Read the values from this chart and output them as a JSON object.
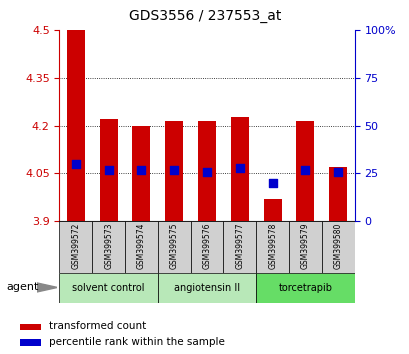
{
  "title": "GDS3556 / 237553_at",
  "samples": [
    "GSM399572",
    "GSM399573",
    "GSM399574",
    "GSM399575",
    "GSM399576",
    "GSM399577",
    "GSM399578",
    "GSM399579",
    "GSM399580"
  ],
  "transformed_counts": [
    4.5,
    4.22,
    4.2,
    4.215,
    4.215,
    4.228,
    3.97,
    4.215,
    4.07
  ],
  "percentile_ranks_pct": [
    30,
    27,
    27,
    27,
    26,
    28,
    20,
    27,
    26
  ],
  "bar_bottom": 3.9,
  "ylim_left": [
    3.9,
    4.5
  ],
  "ylim_right": [
    0,
    100
  ],
  "yticks_left": [
    3.9,
    4.05,
    4.2,
    4.35,
    4.5
  ],
  "ytick_labels_left": [
    "3.9",
    "4.05",
    "4.2",
    "4.35",
    "4.5"
  ],
  "yticks_right": [
    0,
    25,
    50,
    75,
    100
  ],
  "ytick_labels_right": [
    "0",
    "25",
    "50",
    "75",
    "100%"
  ],
  "grid_values": [
    4.05,
    4.2,
    4.35
  ],
  "bar_color": "#cc0000",
  "dot_color": "#0000cc",
  "agent_groups": [
    {
      "label": "solvent control",
      "color": "#b8e8b8"
    },
    {
      "label": "angiotensin II",
      "color": "#b8e8b8"
    },
    {
      "label": "torcetrapib",
      "color": "#66dd66"
    }
  ],
  "left_axis_color": "#cc0000",
  "right_axis_color": "#0000cc",
  "bar_width": 0.55,
  "dot_size": 30,
  "agent_label": "agent",
  "legend1": "transformed count",
  "legend2": "percentile rank within the sample",
  "sample_box_color": "#d0d0d0",
  "fig_width": 4.1,
  "fig_height": 3.54
}
